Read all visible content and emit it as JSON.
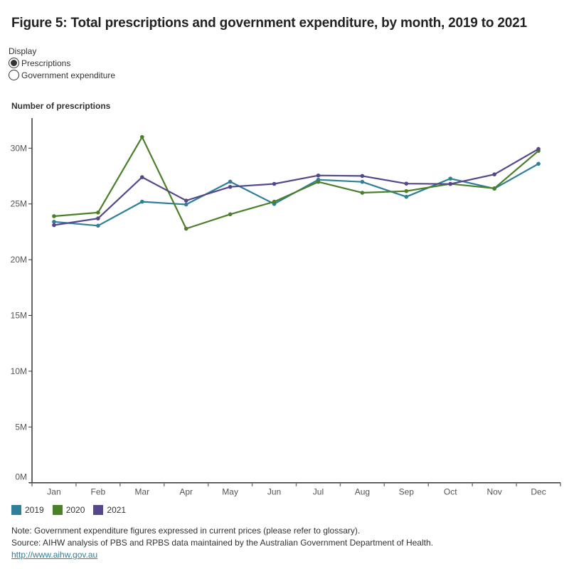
{
  "header": {
    "title": "Figure 5: Total prescriptions and government expenditure, by month, 2019 to 2021"
  },
  "display_control": {
    "label": "Display",
    "options": [
      {
        "label": "Prescriptions",
        "selected": true
      },
      {
        "label": "Government expenditure",
        "selected": false
      }
    ]
  },
  "colors": {
    "2019": "#2e7f99",
    "2020": "#4a8027",
    "2021": "#55478a",
    "axis": "#333333",
    "tick_label": "#555555"
  },
  "legend": {
    "items": [
      {
        "label": "2019",
        "color": "#2e7f99"
      },
      {
        "label": "2020",
        "color": "#4a8027"
      },
      {
        "label": "2021",
        "color": "#55478a"
      }
    ]
  },
  "notes": {
    "note": "Note: Government expenditure figures expressed in current prices (please refer to glossary).",
    "source": "Source: AIHW analysis of PBS and RPBS data maintained by the Australian Government Department of Health.",
    "link": "http://www.aihw.gov.au"
  },
  "chart_data": {
    "type": "line",
    "title": "Figure 5: Total prescriptions and government expenditure, by month, 2019 to 2021",
    "xlabel": "",
    "ylabel": "Number of prescriptions",
    "categories": [
      "Jan",
      "Feb",
      "Mar",
      "Apr",
      "May",
      "Jun",
      "Jul",
      "Aug",
      "Sep",
      "Oct",
      "Nov",
      "Dec"
    ],
    "ylim": [
      0,
      32700000
    ],
    "yticks": [
      0,
      5000000,
      10000000,
      15000000,
      20000000,
      25000000,
      30000000
    ],
    "ytick_labels": [
      "0M",
      "5M",
      "10M",
      "15M",
      "20M",
      "25M",
      "30M"
    ],
    "grid": false,
    "legend_position": "bottom-left",
    "series": [
      {
        "name": "2019",
        "color": "#2e7f99",
        "values": [
          23400000,
          23050000,
          25200000,
          24950000,
          27000000,
          25000000,
          27170000,
          26980000,
          25640000,
          27270000,
          26370000,
          28600000
        ]
      },
      {
        "name": "2020",
        "color": "#4a8027",
        "values": [
          23900000,
          24230000,
          31000000,
          22780000,
          24070000,
          25200000,
          26980000,
          26000000,
          26150000,
          26800000,
          26400000,
          29760000
        ]
      },
      {
        "name": "2021",
        "color": "#55478a",
        "values": [
          23100000,
          23700000,
          27400000,
          25300000,
          26530000,
          26800000,
          27550000,
          27510000,
          26820000,
          26790000,
          27650000,
          29930000
        ]
      }
    ]
  }
}
